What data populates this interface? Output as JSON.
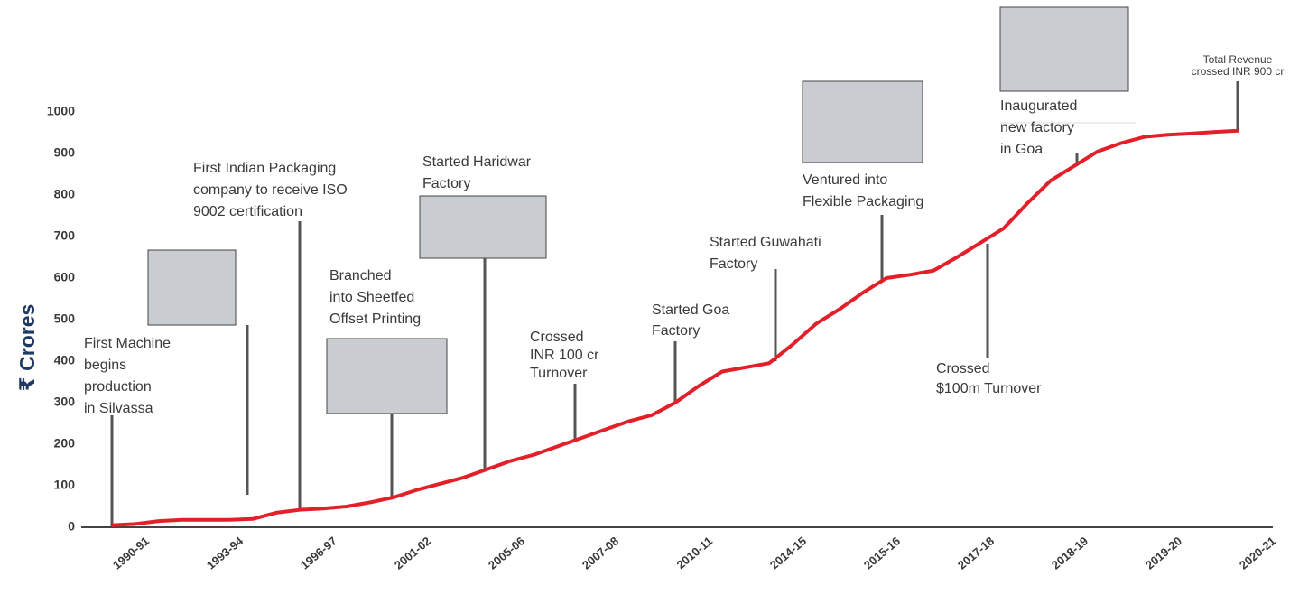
{
  "chart_data": {
    "type": "line",
    "ylabel": "₹ Crores",
    "ylim": [
      0,
      1000
    ],
    "yticks": [
      0,
      100,
      200,
      300,
      400,
      500,
      600,
      700,
      800,
      900,
      1000
    ],
    "categories": [
      "1990-91",
      null,
      null,
      null,
      "1993-94",
      null,
      null,
      null,
      "1996-97",
      null,
      null,
      null,
      "2001-02",
      null,
      null,
      null,
      "2005-06",
      null,
      null,
      null,
      "2007-08",
      null,
      null,
      null,
      "2010-11",
      null,
      null,
      null,
      "2014-15",
      null,
      null,
      null,
      "2015-16",
      null,
      null,
      null,
      "2017-18",
      null,
      null,
      null,
      "2018-19",
      null,
      null,
      null,
      "2019-20",
      null,
      null,
      null,
      "2020-21"
    ],
    "series": [
      {
        "color": "#e3202a",
        "values": [
          5,
          8,
          15,
          18,
          18,
          18,
          20,
          35,
          42,
          45,
          50,
          60,
          72,
          90,
          105,
          120,
          140,
          160,
          175,
          195,
          215,
          235,
          255,
          270,
          300,
          340,
          375,
          385,
          395,
          440,
          490,
          525,
          565,
          600,
          608,
          618,
          650,
          685,
          720,
          780,
          835,
          870,
          905,
          925,
          940,
          945,
          948,
          952,
          955
        ]
      }
    ],
    "annotations": [
      [
        "First Machine",
        "begins",
        "production",
        "in Silvassa"
      ],
      [
        "First Indian Packaging",
        "company to receive ISO",
        "9002 certification"
      ],
      [
        "Branched",
        "into Sheetfed",
        "Offset Printing"
      ],
      [
        "Started Haridwar",
        "Factory"
      ],
      [
        "Crossed",
        "INR 100 cr",
        "Turnover"
      ],
      [
        "Started Goa",
        "Factory"
      ],
      [
        "Started Guwahati",
        "Factory"
      ],
      [
        "Ventured into",
        "Flexible Packaging"
      ],
      [
        "Crossed",
        "$100m Turnover"
      ],
      [
        "Inaugurated",
        "new factory",
        "in Goa"
      ],
      [
        "Total Revenue",
        "crossed INR 900 cr"
      ]
    ]
  }
}
